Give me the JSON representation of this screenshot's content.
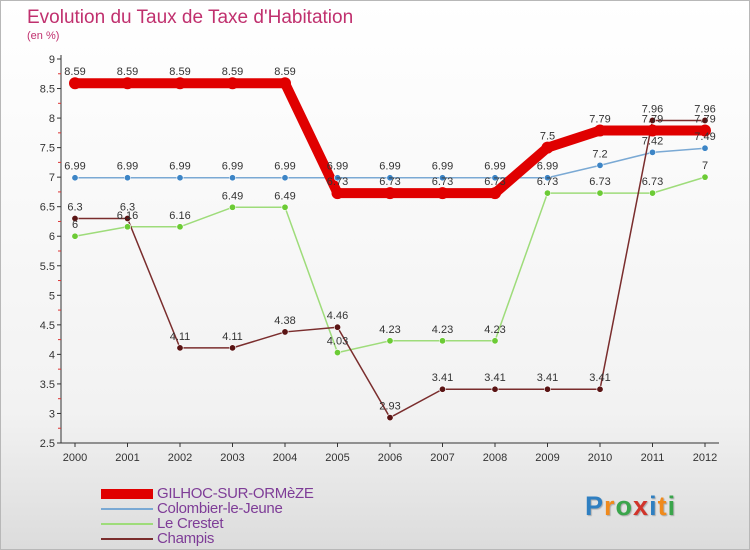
{
  "title": "Evolution du Taux de Taxe d'Habitation",
  "subtitle": "(en %)",
  "brand": {
    "text": "Proxiti",
    "letter_colors": [
      "#2f7fc1",
      "#f08a1c",
      "#3aa54b",
      "#d1342b",
      "#2f7fc1",
      "#f08a1c",
      "#3aa54b"
    ]
  },
  "chart_data": {
    "type": "line",
    "x": [
      2000,
      2001,
      2002,
      2003,
      2004,
      2005,
      2006,
      2007,
      2008,
      2009,
      2010,
      2011,
      2012
    ],
    "x_tick_labels": [
      "2000",
      "2001",
      "2002",
      "2003",
      "2004",
      "2005",
      "2006",
      "2007",
      "2008",
      "2009",
      "2010",
      "2011",
      "2012"
    ],
    "ylim": [
      2.5,
      9
    ],
    "y_ticks": [
      2.5,
      3,
      3.5,
      4,
      4.5,
      5,
      5.5,
      6,
      6.5,
      7,
      7.5,
      8,
      8.5,
      9
    ],
    "y_tick_labels": [
      "2.5",
      "3",
      "3.5",
      "4",
      "4.5",
      "5",
      "5.5",
      "6",
      "6.5",
      "7",
      "7.5",
      "8",
      "8.5",
      "9"
    ],
    "grid": false,
    "legend_position": "bottom-left",
    "series": [
      {
        "name": "GILHOC-SUR-ORMèZE",
        "color": "#e00000",
        "marker_color": "#e00000",
        "thick": true,
        "values": [
          8.59,
          8.59,
          8.59,
          8.59,
          8.59,
          6.73,
          6.73,
          6.73,
          6.73,
          7.5,
          7.79,
          7.79,
          7.79
        ],
        "labels": [
          "8.59",
          "8.59",
          "8.59",
          "8.59",
          "8.59",
          "6.73",
          "6.73",
          "6.73",
          "6.73",
          "7.5",
          "7.79",
          "7.79",
          "7.79"
        ]
      },
      {
        "name": "Colombier-le-Jeune",
        "color": "#7aa9d4",
        "marker_color": "#3d85c6",
        "thick": false,
        "values": [
          6.99,
          6.99,
          6.99,
          6.99,
          6.99,
          6.99,
          6.99,
          6.99,
          6.99,
          6.99,
          7.2,
          7.42,
          7.49
        ],
        "labels": [
          "6.99",
          "6.99",
          "6.99",
          "6.99",
          "6.99",
          "6.99",
          "6.99",
          "6.99",
          "6.99",
          "6.99",
          "7.2",
          "7.42",
          "7.49"
        ]
      },
      {
        "name": "Le Crestet",
        "color": "#9edc7a",
        "marker_color": "#6ccb35",
        "thick": false,
        "values": [
          6,
          6.16,
          6.16,
          6.49,
          6.49,
          4.03,
          4.23,
          4.23,
          4.23,
          6.73,
          6.73,
          6.73,
          7
        ],
        "labels": [
          "6",
          "6.16",
          "6.16",
          "6.49",
          "6.49",
          "4.03",
          "4.23",
          "4.23",
          "4.23",
          "6.73",
          "6.73",
          "6.73",
          "7"
        ]
      },
      {
        "name": "Champis",
        "color": "#7a2d2d",
        "marker_color": "#5a1414",
        "thick": false,
        "values": [
          6.3,
          6.3,
          4.11,
          4.11,
          4.38,
          4.46,
          2.93,
          3.41,
          3.41,
          3.41,
          3.41,
          7.96,
          7.96
        ],
        "labels": [
          "6.3",
          "6.3",
          "4.11",
          "4.11",
          "4.38",
          "4.46",
          "2.93",
          "3.41",
          "3.41",
          "3.41",
          "3.41",
          "7.96",
          "7.96"
        ]
      }
    ]
  }
}
